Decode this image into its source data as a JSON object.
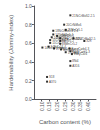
{
  "chart_data": {
    "type": "scatter",
    "xlabel": "Carbon content (%)",
    "ylabel": "Hardenability (Jominy-index)",
    "x": [
      0.285,
      0.245,
      0.175,
      0.175,
      0.165,
      0.2,
      0.255,
      0.155,
      0.155,
      0.22,
      0.22,
      0.22,
      0.305,
      0.375,
      0.145,
      0.18,
      0.225,
      0.28,
      0.285,
      0.295,
      0.255,
      0.105,
      0.285,
      0.285,
      0.135,
      0.135
    ],
    "values": [
      0.9,
      0.8,
      0.735,
      0.695,
      0.665,
      0.68,
      0.745,
      0.635,
      0.605,
      0.655,
      0.625,
      0.595,
      0.655,
      0.625,
      0.565,
      0.545,
      0.535,
      0.545,
      0.515,
      0.485,
      0.505,
      0.555,
      0.41,
      0.36,
      0.24,
      0.19
    ],
    "annotations": [
      "21NiCrMoS2-2.5",
      "20CrNiMo6",
      "18NiCrMo5-4 2.4",
      "17CrNiMo6-4",
      "16MnCr5-1",
      "20MnCr5-1",
      "25MnCr5-1",
      "15CrNi6-2.5",
      "15Cr3-1.7",
      "20NiCrMoS2-2",
      "MnCr5-2",
      "20MnCr5-2",
      "20NiCrMoS2-5",
      "32h",
      "14NiCr14-4",
      "17CrNi6-4",
      "MnCrMo5-1",
      "EasyCarb4-3",
      "EasyCarb5-3",
      "EasyCar4",
      "17CrNi6",
      "14NiCr4-4 var",
      "8Ni4",
      "A316",
      "S18",
      "A370"
    ],
    "xlim": [
      0.05,
      0.45
    ],
    "ylim": [
      0.0,
      1.0
    ],
    "xticks": [
      {
        "value": 0.1,
        "label": "0.10"
      },
      0.15,
      {
        "value": 0.2,
        "label": "0.20"
      },
      0.25,
      {
        "value": 0.3,
        "label": "0.30"
      },
      0.35,
      {
        "value": 0.4,
        "label": "0.40"
      }
    ],
    "yticks": [
      {
        "value": 0.0,
        "label": "0.0"
      },
      0.2,
      0.4,
      0.6,
      0.8,
      {
        "value": 1.0,
        "label": "1.0"
      }
    ],
    "color": "#000000",
    "marker": "square",
    "grid": false
  }
}
